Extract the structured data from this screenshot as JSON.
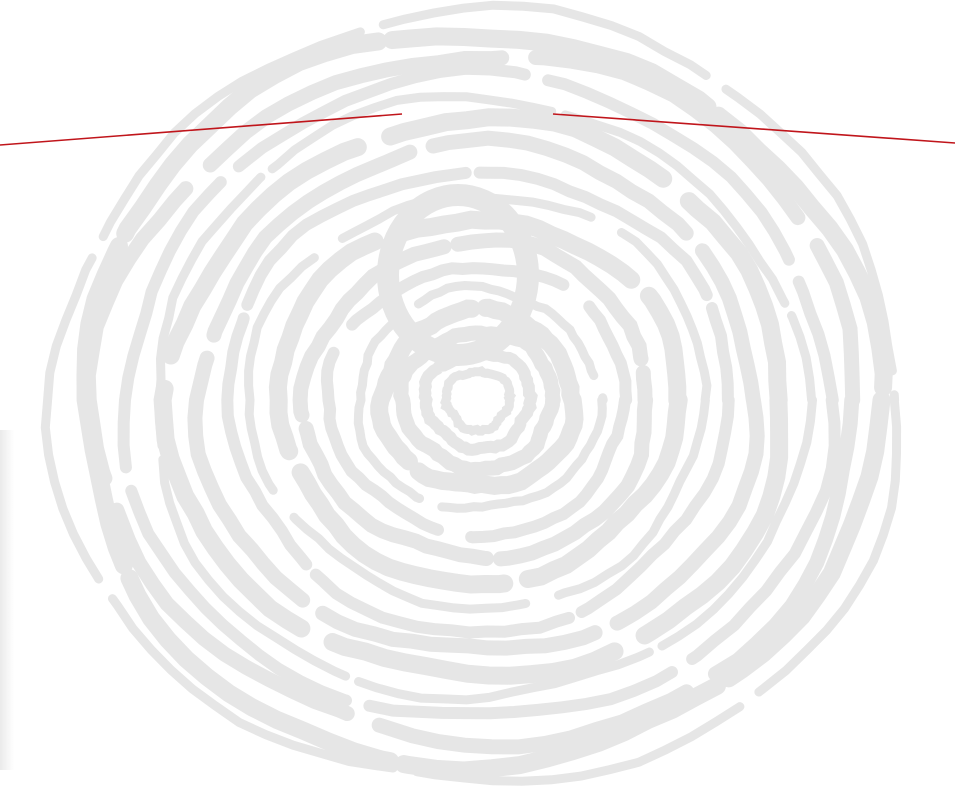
{
  "background_color": "#ffffff",
  "artwork": {
    "icon": "tree-rings-swirl",
    "ring_color": "#e6e6e6"
  },
  "accent_color": "#c0151b"
}
